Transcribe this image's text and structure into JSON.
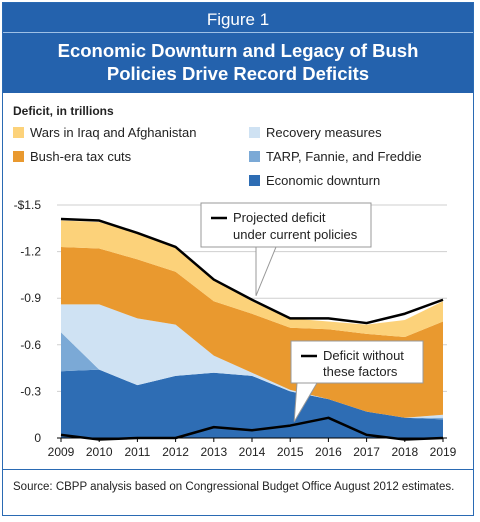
{
  "header": {
    "figure_label": "Figure 1",
    "title_line1": "Economic Downturn and Legacy of Bush",
    "title_line2": "Policies Drive Record Deficits"
  },
  "source_note": "Source: CBPP analysis based on Congressional Budget Office August 2012 estimates.",
  "colors": {
    "wars": "#fcd27a",
    "tax_cuts": "#e9992f",
    "recovery": "#cfe2f3",
    "tarp": "#7ba9d6",
    "downturn": "#2e6db4",
    "line": "#000000",
    "accent": "#2462ad"
  },
  "chart_data": {
    "type": "area",
    "ylabel": "Deficit, in trillions",
    "ylim": [
      0,
      1.5
    ],
    "y_ticks": [
      0,
      0.3,
      0.6,
      0.9,
      1.2,
      1.5
    ],
    "y_tick_labels": [
      "0",
      "-0.3",
      "-0.6",
      "-0.9",
      "-1.2",
      "-$1.5"
    ],
    "x": [
      "2009",
      "2010",
      "2011",
      "2012",
      "2013",
      "2014",
      "2015",
      "2016",
      "2017",
      "2018",
      "2019"
    ],
    "stacked": true,
    "series": [
      {
        "name": "Economic downturn",
        "color_key": "downturn",
        "values": [
          0.43,
          0.44,
          0.34,
          0.4,
          0.42,
          0.4,
          0.3,
          0.25,
          0.17,
          0.13,
          0.12
        ]
      },
      {
        "name": "TARP, Fannie, and Freddie",
        "color_key": "tarp",
        "values": [
          0.25,
          0.0,
          0.0,
          0.0,
          0.0,
          0.0,
          0.0,
          0.0,
          0.0,
          0.0,
          0.01
        ]
      },
      {
        "name": "Recovery measures",
        "color_key": "recovery",
        "values": [
          0.18,
          0.42,
          0.43,
          0.33,
          0.11,
          0.02,
          0.01,
          0.0,
          0.0,
          0.0,
          0.02
        ]
      },
      {
        "name": "Bush-era tax cuts",
        "color_key": "tax_cuts",
        "values": [
          0.37,
          0.36,
          0.38,
          0.34,
          0.35,
          0.38,
          0.4,
          0.45,
          0.5,
          0.52,
          0.6
        ]
      },
      {
        "name": "Wars in Iraq and Afghanistan",
        "color_key": "wars",
        "values": [
          0.17,
          0.17,
          0.17,
          0.16,
          0.14,
          0.08,
          0.06,
          0.05,
          0.06,
          0.11,
          0.13
        ]
      }
    ],
    "projected_deficit": {
      "name": "Projected deficit under current policies",
      "values": [
        1.41,
        1.4,
        1.32,
        1.23,
        1.02,
        0.89,
        0.77,
        0.77,
        0.74,
        0.8,
        0.89
      ]
    },
    "deficit_without": {
      "name": "Deficit without these factors",
      "values": [
        0.02,
        -0.01,
        0.0,
        0.0,
        0.07,
        0.05,
        0.08,
        0.13,
        0.02,
        -0.01,
        0.0
      ]
    },
    "legend": [
      {
        "label": "Wars in Iraq and Afghanistan",
        "color_key": "wars"
      },
      {
        "label": "Recovery measures",
        "color_key": "recovery"
      },
      {
        "label": "Bush-era tax cuts",
        "color_key": "tax_cuts"
      },
      {
        "label": "TARP, Fannie, and Freddie",
        "color_key": "tarp"
      },
      {
        "label": "Economic downturn",
        "color_key": "downturn"
      }
    ],
    "callouts": {
      "projected_line1": "Projected deficit",
      "projected_line2": "under current policies",
      "without_line1": "Deficit without",
      "without_line2": "these factors"
    }
  }
}
